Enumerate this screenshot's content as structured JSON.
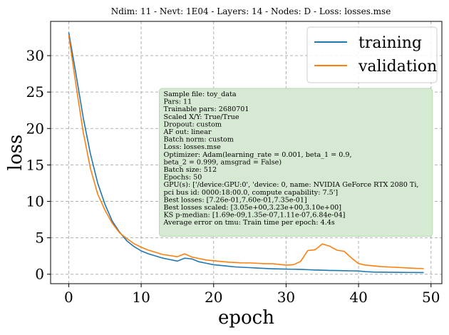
{
  "title": "Ndim: 11 - Nevt: 1E04 - Layers: 14 - Nodes: D - Loss: losses.mse",
  "chart_data": {
    "type": "line",
    "title": "Ndim: 11 - Nevt: 1E04 - Layers: 14 - Nodes: D - Loss: losses.mse",
    "xlabel": "epoch",
    "ylabel": "loss",
    "xlim": [
      -2.5,
      51.5
    ],
    "ylim": [
      -1.3,
      34.7
    ],
    "xticks": [
      0,
      10,
      20,
      30,
      40,
      50
    ],
    "yticks": [
      0,
      5,
      10,
      15,
      20,
      25,
      30
    ],
    "grid": true,
    "legend_position": "top-right",
    "x": [
      0,
      1,
      2,
      3,
      4,
      5,
      6,
      7,
      8,
      9,
      10,
      11,
      12,
      13,
      14,
      15,
      16,
      17,
      18,
      19,
      20,
      21,
      22,
      23,
      24,
      25,
      26,
      27,
      28,
      29,
      30,
      31,
      32,
      33,
      34,
      35,
      36,
      37,
      38,
      39,
      40,
      41,
      42,
      43,
      44,
      45,
      46,
      47,
      48,
      49
    ],
    "series": [
      {
        "name": "training",
        "color": "#1f77b4",
        "values": [
          33.2,
          27.5,
          21.5,
          16.5,
          12.5,
          9.6,
          7.3,
          5.8,
          4.6,
          3.8,
          3.2,
          2.8,
          2.5,
          2.2,
          2.0,
          1.8,
          2.2,
          2.1,
          1.7,
          1.5,
          1.3,
          1.2,
          1.1,
          1.0,
          0.95,
          0.9,
          0.85,
          0.8,
          0.75,
          0.72,
          0.7,
          0.68,
          0.66,
          0.62,
          0.58,
          0.55,
          0.52,
          0.5,
          0.48,
          0.46,
          0.44,
          0.35,
          0.3,
          0.28,
          0.27,
          0.26,
          0.25,
          0.24,
          0.23,
          0.22
        ]
      },
      {
        "name": "validation",
        "color": "#ff7f0e",
        "values": [
          32.8,
          26.0,
          19.5,
          14.5,
          11.0,
          8.8,
          7.0,
          5.7,
          4.9,
          4.2,
          3.7,
          3.3,
          3.0,
          2.7,
          2.55,
          2.4,
          2.8,
          2.35,
          2.15,
          1.95,
          1.85,
          1.75,
          1.65,
          1.6,
          1.55,
          1.55,
          1.5,
          1.45,
          1.45,
          1.35,
          1.25,
          1.3,
          1.75,
          3.25,
          3.35,
          4.15,
          3.85,
          3.3,
          3.15,
          2.25,
          1.45,
          1.25,
          1.15,
          1.05,
          1.0,
          0.95,
          0.9,
          0.85,
          0.8,
          0.78
        ]
      }
    ],
    "info_box": {
      "color": "#d6ead3",
      "lines": [
        "Sample file:  toy_data",
        "Pars: 11",
        "Trainable pars: 2680701",
        "Scaled X/Y: True/True",
        "Dropout: custom",
        "AF out: linear",
        "Batch norm: custom",
        "Loss: losses.mse",
        "Optimizer:  Adam(learning_rate = 0.001, beta_1 = 0.9,",
        "beta_2 = 0.999, amsgrad = False)",
        "Batch size: 512",
        "Epochs:  50",
        "GPU(s):  ['/device:GPU:0', 'device: 0, name:  NVIDIA GeForce RTX 2080 Ti,",
        "pci bus id:  0000:18:00.0, compute capability: 7.5']",
        "Best losses:  [7.26e-01,7.60e-01,7.35e-01]",
        "Best losses scaled:  [3.05e+00,3.23e+00,3.10e+00]",
        "KS p-median:  [1.69e-09,1.35e-07,1.11e-07,6.84e-04]",
        "Average error on tmu:  Train time per epoch:  4.4s"
      ]
    }
  }
}
